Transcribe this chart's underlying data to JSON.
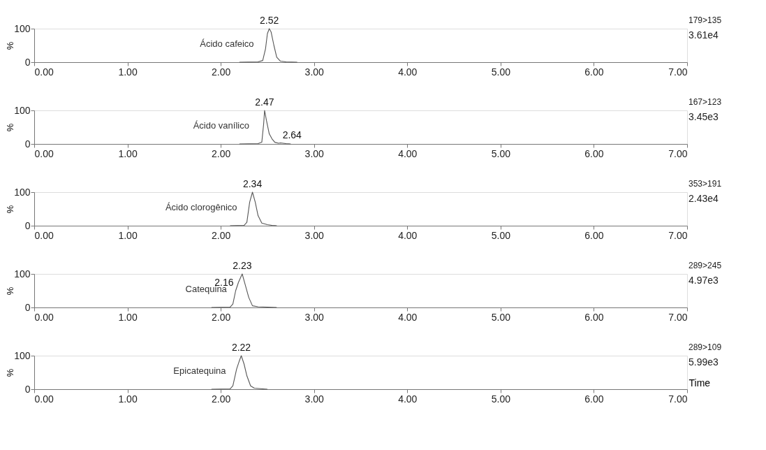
{
  "chart_data": [
    {
      "type": "line",
      "ylabel": "%",
      "xlim": [
        0,
        7
      ],
      "ylim": [
        0,
        100
      ],
      "xticks": [
        {
          "value": 0,
          "label": "0.00"
        },
        {
          "value": 1,
          "label": "1.00"
        },
        {
          "value": 2,
          "label": "2.00"
        },
        {
          "value": 3,
          "label": "3.00"
        },
        {
          "value": 4,
          "label": "4.00"
        },
        {
          "value": 5,
          "label": "5.00"
        },
        {
          "value": 6,
          "label": "6.00"
        },
        {
          "value": 7,
          "label": "7.00"
        }
      ],
      "yticks": [
        0,
        100
      ],
      "grid": false,
      "marker": "none",
      "line_style": "solid",
      "series": [
        {
          "name": "Ácido cafeico",
          "color": "#555555",
          "x": [
            2.2,
            2.4,
            2.45,
            2.48,
            2.5,
            2.52,
            2.54,
            2.57,
            2.6,
            2.64,
            2.7,
            2.82
          ],
          "values": [
            0,
            1,
            5,
            40,
            85,
            100,
            90,
            50,
            15,
            3,
            1,
            0
          ]
        }
      ],
      "annotations": [
        {
          "text": "2.52",
          "x": 2.52,
          "y": 100
        },
        "179>135",
        "3.61e4"
      ]
    },
    {
      "type": "line",
      "ylabel": "%",
      "xlim": [
        0,
        7
      ],
      "ylim": [
        0,
        100
      ],
      "xticks": [
        {
          "value": 0,
          "label": "0.00"
        },
        {
          "value": 1,
          "label": "1.00"
        },
        {
          "value": 2,
          "label": "2.00"
        },
        {
          "value": 3,
          "label": "3.00"
        },
        {
          "value": 4,
          "label": "4.00"
        },
        {
          "value": 5,
          "label": "5.00"
        },
        {
          "value": 6,
          "label": "6.00"
        },
        {
          "value": 7,
          "label": "7.00"
        }
      ],
      "yticks": [
        0,
        100
      ],
      "grid": false,
      "marker": "none",
      "line_style": "solid",
      "series": [
        {
          "name": "Ácido vanílico",
          "color": "#555555",
          "x": [
            2.2,
            2.4,
            2.44,
            2.46,
            2.47,
            2.49,
            2.52,
            2.55,
            2.58,
            2.62,
            2.64,
            2.7,
            2.75
          ],
          "values": [
            0,
            1,
            5,
            60,
            100,
            70,
            30,
            15,
            5,
            2,
            3,
            1,
            0
          ]
        }
      ],
      "annotations": [
        {
          "text": "2.47",
          "x": 2.47,
          "y": 100
        },
        {
          "text": "2.64",
          "x": 2.64,
          "y": 3
        },
        "167>123",
        "3.45e3"
      ]
    },
    {
      "type": "line",
      "ylabel": "%",
      "xlim": [
        0,
        7
      ],
      "ylim": [
        0,
        100
      ],
      "xticks": [
        {
          "value": 0,
          "label": "0.00"
        },
        {
          "value": 1,
          "label": "1.00"
        },
        {
          "value": 2,
          "label": "2.00"
        },
        {
          "value": 3,
          "label": "3.00"
        },
        {
          "value": 4,
          "label": "4.00"
        },
        {
          "value": 5,
          "label": "5.00"
        },
        {
          "value": 6,
          "label": "6.00"
        },
        {
          "value": 7,
          "label": "7.00"
        }
      ],
      "yticks": [
        0,
        100
      ],
      "grid": false,
      "marker": "none",
      "line_style": "solid",
      "series": [
        {
          "name": "Ácido clorogênico",
          "color": "#555555",
          "x": [
            2.1,
            2.25,
            2.28,
            2.31,
            2.34,
            2.37,
            2.4,
            2.44,
            2.5,
            2.55,
            2.6
          ],
          "values": [
            0,
            1,
            10,
            70,
            100,
            70,
            30,
            8,
            3,
            1,
            0
          ]
        }
      ],
      "annotations": [
        {
          "text": "2.34",
          "x": 2.34,
          "y": 100
        },
        "353>191",
        "2.43e4"
      ]
    },
    {
      "type": "line",
      "ylabel": "%",
      "xlim": [
        0,
        7
      ],
      "ylim": [
        0,
        100
      ],
      "xticks": [
        {
          "value": 0,
          "label": "0.00"
        },
        {
          "value": 1,
          "label": "1.00"
        },
        {
          "value": 2,
          "label": "2.00"
        },
        {
          "value": 3,
          "label": "3.00"
        },
        {
          "value": 4,
          "label": "4.00"
        },
        {
          "value": 5,
          "label": "5.00"
        },
        {
          "value": 6,
          "label": "6.00"
        },
        {
          "value": 7,
          "label": "7.00"
        }
      ],
      "yticks": [
        0,
        100
      ],
      "grid": false,
      "marker": "none",
      "line_style": "solid",
      "series": [
        {
          "name": "Catequina",
          "color": "#555555",
          "x": [
            1.9,
            2.1,
            2.13,
            2.16,
            2.19,
            2.23,
            2.26,
            2.3,
            2.34,
            2.4,
            2.5,
            2.6
          ],
          "values": [
            0,
            1,
            10,
            50,
            75,
            100,
            70,
            30,
            5,
            2,
            1,
            0
          ]
        }
      ],
      "annotations": [
        {
          "text": "2.23",
          "x": 2.23,
          "y": 100
        },
        {
          "text": "2.16",
          "x": 2.16,
          "y": 50
        },
        "289>245",
        "4.97e3"
      ]
    },
    {
      "type": "line",
      "ylabel": "%",
      "xlabel": "Time",
      "xlim": [
        0,
        7
      ],
      "ylim": [
        0,
        100
      ],
      "xticks": [
        {
          "value": 0,
          "label": "0.00"
        },
        {
          "value": 1,
          "label": "1.00"
        },
        {
          "value": 2,
          "label": "2.00"
        },
        {
          "value": 3,
          "label": "3.00"
        },
        {
          "value": 4,
          "label": "4.00"
        },
        {
          "value": 5,
          "label": "5.00"
        },
        {
          "value": 6,
          "label": "6.00"
        },
        {
          "value": 7,
          "label": "7.00"
        }
      ],
      "yticks": [
        0,
        100
      ],
      "grid": false,
      "marker": "none",
      "line_style": "solid",
      "series": [
        {
          "name": "Epicatequina",
          "color": "#555555",
          "x": [
            1.9,
            2.1,
            2.13,
            2.17,
            2.2,
            2.22,
            2.25,
            2.28,
            2.32,
            2.36,
            2.45,
            2.5
          ],
          "values": [
            0,
            1,
            10,
            60,
            85,
            100,
            75,
            40,
            10,
            3,
            1,
            0
          ]
        }
      ],
      "annotations": [
        {
          "text": "2.22",
          "x": 2.22,
          "y": 100
        },
        "289>109",
        "5.99e3"
      ]
    }
  ]
}
